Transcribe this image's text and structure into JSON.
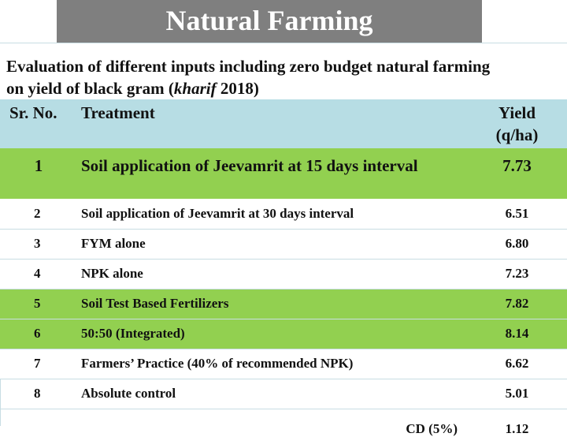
{
  "title": "Natural Farming",
  "caption": {
    "line1": "Evaluation of different inputs including zero budget natural farming",
    "line2_pre": "on yield of black gram (",
    "line2_italic": "kharif",
    "line2_post": " 2018)"
  },
  "table": {
    "headers": {
      "sr": "Sr. No.",
      "treatment": "Treatment",
      "yield_line1": "Yield",
      "yield_line2": "(q/ha)"
    },
    "rows": [
      {
        "sr": "1",
        "treatment": "Soil application of Jeevamrit at 15 days interval",
        "yield": "7.73"
      },
      {
        "sr": "2",
        "treatment": "Soil application of Jeevamrit at 30 days interval",
        "yield": "6.51"
      },
      {
        "sr": "3",
        "treatment": "FYM alone",
        "yield": "6.80"
      },
      {
        "sr": "4",
        "treatment": "NPK alone",
        "yield": "7.23"
      },
      {
        "sr": "5",
        "treatment": "Soil Test Based Fertilizers",
        "yield": "7.82"
      },
      {
        "sr": "6",
        "treatment": "50:50 (Integrated)",
        "yield": "8.14"
      },
      {
        "sr": "7",
        "treatment": "Farmers’ Practice (40% of recommended NPK)",
        "yield": "6.62"
      },
      {
        "sr": "8",
        "treatment": "Absolute control",
        "yield": "5.01"
      }
    ],
    "cd": {
      "label": "CD (5%)",
      "value": "1.12"
    }
  },
  "colors": {
    "title_bg": "#7f7f7f",
    "header_bg": "#b7dde4",
    "highlight_green": "#92d050"
  }
}
